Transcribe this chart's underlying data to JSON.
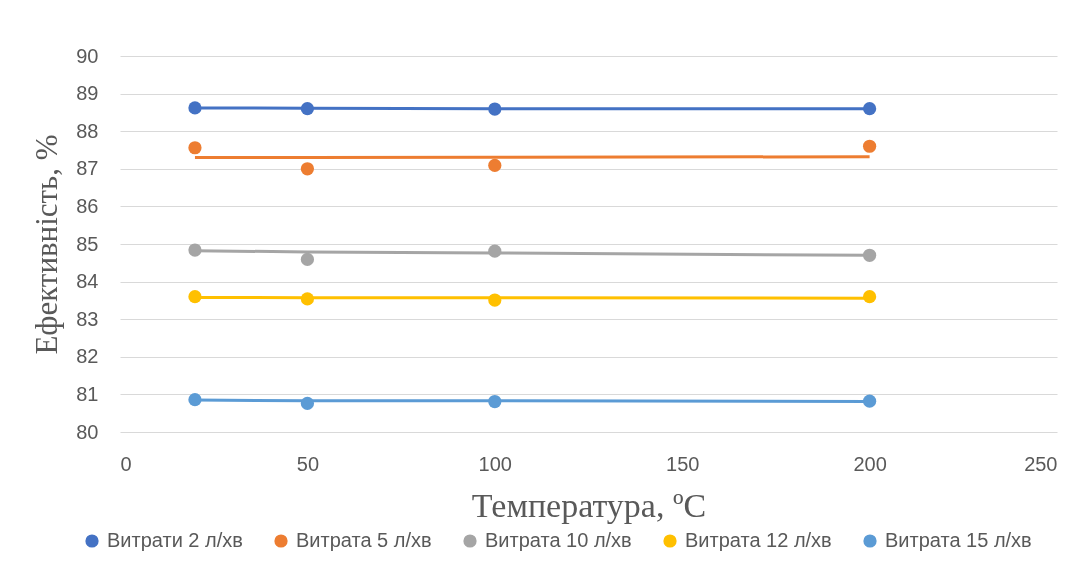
{
  "chart_data": {
    "type": "scatter",
    "xlabel": "Температура, ºC",
    "ylabel": "Ефективність, %",
    "x": [
      20,
      50,
      100,
      200
    ],
    "series": [
      {
        "name": "Витрати 2 л/хв",
        "color": "#4472c4",
        "values": [
          88.62,
          88.6,
          88.59,
          88.6
        ]
      },
      {
        "name": "Витрата 5 л/хв",
        "color": "#ed7d31",
        "values": [
          87.56,
          87.0,
          87.09,
          87.6
        ]
      },
      {
        "name": "Витрата 10 л/хв",
        "color": "#a5a5a5",
        "values": [
          84.84,
          84.59,
          84.81,
          84.7
        ]
      },
      {
        "name": "Витрата 12 л/хв",
        "color": "#ffc000",
        "values": [
          83.6,
          83.54,
          83.51,
          83.6
        ]
      },
      {
        "name": "Витрата 15 л/хв",
        "color": "#5b9bd5",
        "values": [
          80.86,
          80.76,
          80.81,
          80.82
        ]
      },
      {
        "type": "line",
        "marker": "none",
        "color": "#4472c4",
        "values": [
          88.62,
          88.61,
          88.6,
          88.6
        ]
      },
      {
        "type": "line",
        "marker": "none",
        "color": "#ed7d31",
        "values": [
          87.3,
          87.3,
          87.31,
          87.32
        ]
      },
      {
        "type": "line",
        "marker": "none",
        "color": "#a5a5a5",
        "values": [
          84.82,
          84.79,
          84.76,
          84.7
        ]
      },
      {
        "type": "line",
        "marker": "none",
        "color": "#ffc000",
        "values": [
          83.58,
          83.57,
          83.57,
          83.56
        ]
      },
      {
        "type": "line",
        "marker": "none",
        "color": "#5b9bd5",
        "values": [
          80.85,
          80.83,
          80.83,
          80.81
        ]
      }
    ],
    "xlim": [
      0,
      250
    ],
    "xticks": [
      0,
      50,
      100,
      150,
      200,
      250
    ],
    "ylim": [
      80,
      90
    ],
    "yticks": [
      80,
      81,
      82,
      83,
      84,
      85,
      86,
      87,
      88,
      89,
      90
    ],
    "grid": "y",
    "legend": "bottom",
    "marker": "circle"
  }
}
